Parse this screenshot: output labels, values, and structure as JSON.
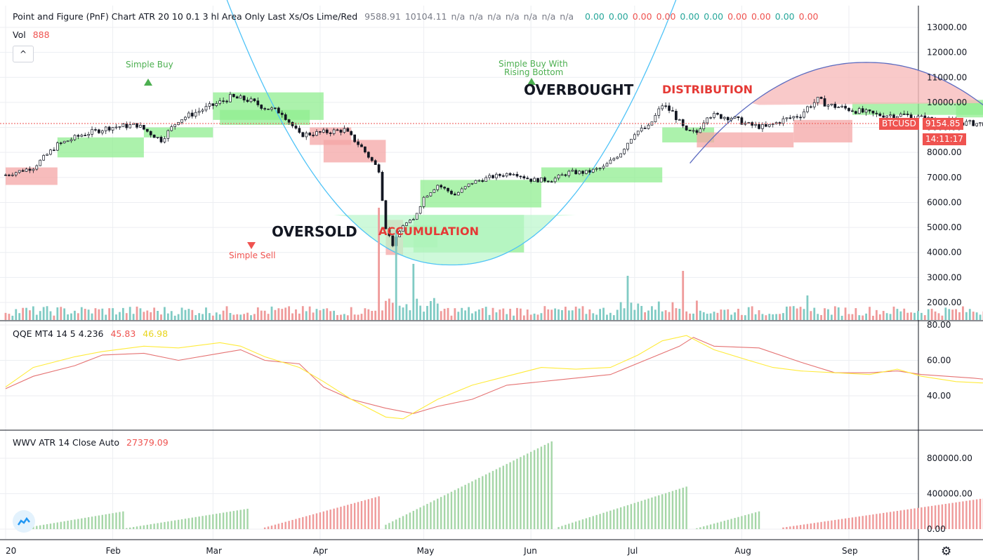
{
  "header": {
    "title": "Point and Figure (PnF) Chart ATR 20 10 0.1 3 hl Area Only Last Xs/Os Lime/Red",
    "values_gray": [
      "9588.91",
      "10104.11",
      "n/a",
      "n/a",
      "n/a",
      "n/a",
      "n/a",
      "n/a",
      "n/a"
    ],
    "values_colored": [
      {
        "v": "0.00",
        "c": "#26a69a"
      },
      {
        "v": "0.00",
        "c": "#26a69a"
      },
      {
        "v": "0.00",
        "c": "#ef5350"
      },
      {
        "v": "0.00",
        "c": "#ef5350"
      },
      {
        "v": "0.00",
        "c": "#26a69a"
      },
      {
        "v": "0.00",
        "c": "#26a69a"
      },
      {
        "v": "0.00",
        "c": "#ef5350"
      },
      {
        "v": "0.00",
        "c": "#ef5350"
      },
      {
        "v": "0.00",
        "c": "#26a69a"
      },
      {
        "v": "0.00",
        "c": "#ef5350"
      }
    ]
  },
  "vol_legend": {
    "label": "Vol",
    "value": "888"
  },
  "qqe_legend": {
    "label": "QQE MT4 14 5 4.236",
    "v1": "45.83",
    "v2": "46.98"
  },
  "wwv_legend": {
    "label": "WWV ATR 14 Close Auto",
    "value": "27379.09"
  },
  "collapse_glyph": "^",
  "price_tag": {
    "symbol": "BTCUSD",
    "price": "9154.85",
    "countdown": "14:11:17"
  },
  "gear_glyph": "⚙",
  "annotations": {
    "simple_buy": "Simple Buy",
    "simple_buy_rising_1": "Simple Buy With",
    "simple_buy_rising_2": "Rising Bottom",
    "simple_sell": "Simple Sell",
    "oversold": "OVERSOLD",
    "accumulation": "ACCUMULATION",
    "overbought": "OVERBOUGHT",
    "distribution": "DISTRIBUTION"
  },
  "colors": {
    "up": "#26a69a",
    "down": "#ef5350",
    "lime_box": "#90ee90",
    "red_box": "#f4a6a6",
    "qqe_red": "#e57373",
    "qqe_yellow": "#ffeb3b",
    "wwv_green": "#a5d6a7",
    "wwv_red": "#ef9a9a"
  },
  "chart_data": [
    {
      "type": "candlestick",
      "symbol": "BTCUSD",
      "x_ticks": [
        "20",
        "Feb",
        "Mar",
        "Apr",
        "May",
        "Jun",
        "Jul",
        "Aug",
        "Sep"
      ],
      "y_ticks": [
        "13000.00",
        "12000.00",
        "11000.00",
        "10000.00",
        "9000.00",
        "8000.00",
        "7000.00",
        "6000.00",
        "5000.00",
        "4000.00",
        "3000.00",
        "2000.00"
      ],
      "ylim": [
        1200,
        13800
      ],
      "last_price": 9154.85,
      "close_path": [
        [
          0,
          7100
        ],
        [
          8,
          7400
        ],
        [
          15,
          8300
        ],
        [
          22,
          8700
        ],
        [
          30,
          9000
        ],
        [
          38,
          9100
        ],
        [
          45,
          8500
        ],
        [
          50,
          9300
        ],
        [
          55,
          9600
        ],
        [
          62,
          10000
        ],
        [
          65,
          10200
        ],
        [
          70,
          10100
        ],
        [
          75,
          9800
        ],
        [
          80,
          9600
        ],
        [
          85,
          8700
        ],
        [
          92,
          8800
        ],
        [
          98,
          8900
        ],
        [
          103,
          8200
        ],
        [
          108,
          7300
        ],
        [
          110,
          5000
        ],
        [
          112,
          4300
        ],
        [
          115,
          5100
        ],
        [
          118,
          5300
        ],
        [
          121,
          6200
        ],
        [
          125,
          6700
        ],
        [
          130,
          6300
        ],
        [
          135,
          6800
        ],
        [
          140,
          7000
        ],
        [
          147,
          7200
        ],
        [
          152,
          6900
        ],
        [
          158,
          6900
        ],
        [
          163,
          7200
        ],
        [
          168,
          7200
        ],
        [
          173,
          7400
        ],
        [
          178,
          8000
        ],
        [
          182,
          8800
        ],
        [
          186,
          9000
        ],
        [
          190,
          9900
        ],
        [
          193,
          9600
        ],
        [
          197,
          8800
        ],
        [
          200,
          8800
        ],
        [
          203,
          9500
        ],
        [
          210,
          9400
        ],
        [
          215,
          9100
        ],
        [
          220,
          9000
        ],
        [
          225,
          9300
        ],
        [
          230,
          9500
        ],
        [
          232,
          9800
        ],
        [
          235,
          10100
        ],
        [
          238,
          9900
        ],
        [
          245,
          9700
        ],
        [
          252,
          9500
        ],
        [
          260,
          9500
        ],
        [
          268,
          9300
        ],
        [
          275,
          9200
        ],
        [
          282,
          9150
        ],
        [
          290,
          9300
        ],
        [
          298,
          9200
        ],
        [
          303,
          9150
        ]
      ]
    },
    {
      "type": "bar",
      "name": "Vol",
      "values_by_day": "derived",
      "spikes": [
        [
          108,
          2.0
        ],
        [
          113,
          1.6
        ],
        [
          118,
          1.0
        ],
        [
          180,
          0.9
        ],
        [
          196,
          1.0
        ],
        [
          232,
          0.7
        ]
      ]
    },
    {
      "type": "line",
      "name": "QQE MT4 14 5 4.236",
      "ylim": [
        22,
        82
      ],
      "y_ticks": [
        "80.00",
        "60.00",
        "40.00"
      ],
      "series": [
        {
          "color": "#e57373",
          "points": [
            [
              0,
              44
            ],
            [
              8,
              51
            ],
            [
              20,
              57
            ],
            [
              28,
              63
            ],
            [
              40,
              64
            ],
            [
              50,
              60
            ],
            [
              62,
              64
            ],
            [
              68,
              66
            ],
            [
              75,
              60
            ],
            [
              85,
              58
            ],
            [
              92,
              45
            ],
            [
              100,
              38
            ],
            [
              110,
              33
            ],
            [
              118,
              30
            ],
            [
              125,
              34
            ],
            [
              135,
              38
            ],
            [
              145,
              46
            ],
            [
              160,
              49
            ],
            [
              175,
              52
            ],
            [
              185,
              60
            ],
            [
              195,
              68
            ],
            [
              199,
              73
            ],
            [
              205,
              68
            ],
            [
              218,
              67
            ],
            [
              230,
              59
            ],
            [
              240,
              53
            ],
            [
              250,
              53
            ],
            [
              258,
              54
            ],
            [
              265,
              52
            ],
            [
              280,
              50
            ],
            [
              295,
              47
            ],
            [
              303,
              46
            ]
          ]
        },
        {
          "color": "#ffeb3b",
          "points": [
            [
              0,
              45
            ],
            [
              8,
              56
            ],
            [
              20,
              62
            ],
            [
              28,
              65
            ],
            [
              40,
              68
            ],
            [
              50,
              67
            ],
            [
              62,
              70
            ],
            [
              68,
              68
            ],
            [
              75,
              62
            ],
            [
              85,
              56
            ],
            [
              92,
              48
            ],
            [
              100,
              38
            ],
            [
              110,
              28
            ],
            [
              115,
              27
            ],
            [
              125,
              38
            ],
            [
              135,
              46
            ],
            [
              145,
              51
            ],
            [
              155,
              56
            ],
            [
              165,
              55
            ],
            [
              175,
              56
            ],
            [
              183,
              63
            ],
            [
              190,
              71
            ],
            [
              197,
              74
            ],
            [
              205,
              66
            ],
            [
              215,
              60
            ],
            [
              222,
              56
            ],
            [
              230,
              54
            ],
            [
              240,
              53
            ],
            [
              250,
              52
            ],
            [
              258,
              55
            ],
            [
              265,
              51
            ],
            [
              275,
              48
            ],
            [
              285,
              47
            ],
            [
              295,
              49
            ],
            [
              303,
              47
            ]
          ]
        }
      ]
    },
    {
      "type": "bar",
      "name": "WWV ATR 14 Close Auto",
      "ylim": [
        -50000,
        1060000
      ],
      "y_ticks": [
        "800000.00",
        "400000.00",
        "0.00"
      ],
      "segments": [
        {
          "start": 5,
          "end": 34,
          "peak": 200000,
          "color": "green"
        },
        {
          "start": 35,
          "end": 70,
          "peak": 230000,
          "color": "green"
        },
        {
          "start": 75,
          "end": 108,
          "peak": 370000,
          "color": "red"
        },
        {
          "start": 110,
          "end": 158,
          "peak": 990000,
          "color": "green"
        },
        {
          "start": 160,
          "end": 197,
          "peak": 480000,
          "color": "green"
        },
        {
          "start": 200,
          "end": 218,
          "peak": 200000,
          "color": "green"
        },
        {
          "start": 225,
          "end": 287,
          "peak": 370000,
          "color": "red"
        },
        {
          "start": 288,
          "end": 300,
          "peak": 40000,
          "color": "green"
        },
        {
          "start": 300,
          "end": 304,
          "peak": 25000,
          "color": "red"
        }
      ]
    }
  ]
}
